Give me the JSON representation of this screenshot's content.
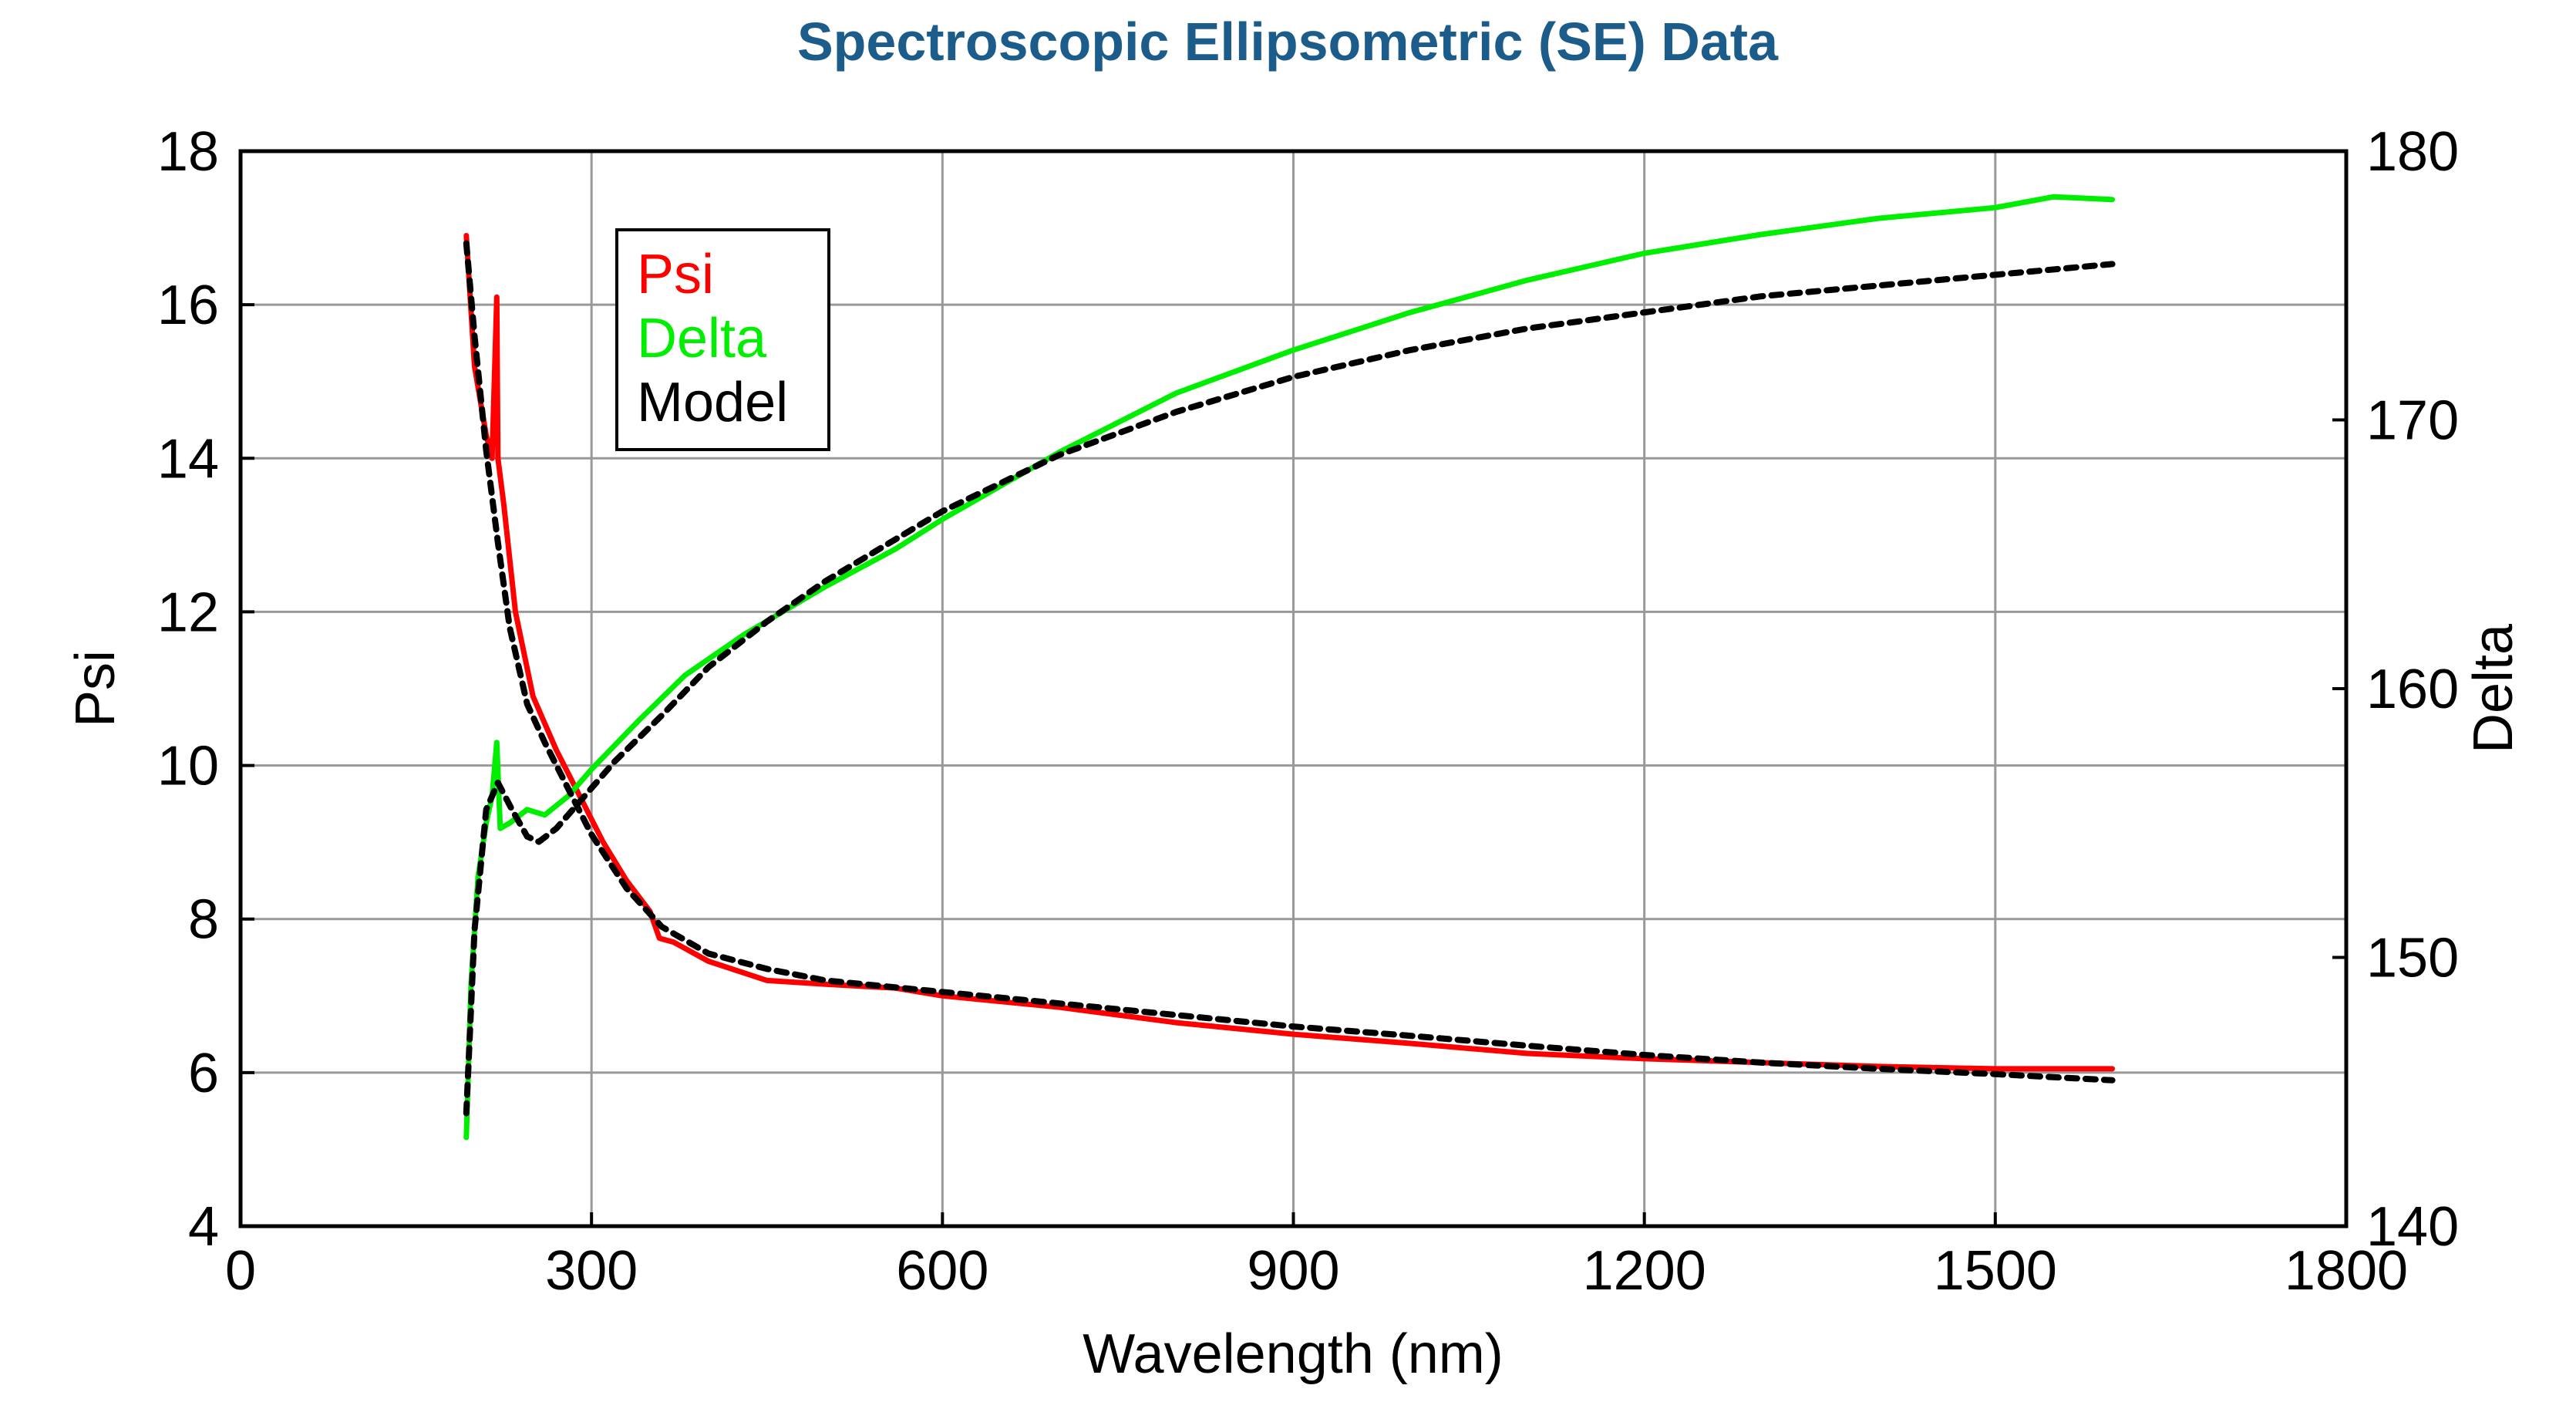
{
  "colors": {
    "title": "#1b5c8a",
    "psi": "#ff0000",
    "delta": "#00ee00",
    "model": "#000000",
    "grid": "#999999"
  },
  "chart_data": {
    "type": "line",
    "title": "Spectroscopic Ellipsometric (SE) Data",
    "xlabel": "Wavelength (nm)",
    "ylabel": "Psi",
    "y2label": "Delta",
    "xlim": [
      0,
      1800
    ],
    "ylim": [
      4,
      18
    ],
    "y2lim": [
      140,
      180
    ],
    "xticks": [
      0,
      300,
      600,
      900,
      1200,
      1500,
      1800
    ],
    "yticks": [
      4,
      6,
      8,
      10,
      12,
      14,
      16,
      18
    ],
    "y2ticks": [
      140,
      150,
      160,
      170,
      180
    ],
    "grid": true,
    "legend": {
      "position": "top-left",
      "entries": [
        {
          "label": "Psi",
          "series": "psi"
        },
        {
          "label": "Delta",
          "series": "delta"
        },
        {
          "label": "Model",
          "series": "model"
        }
      ]
    },
    "series": [
      {
        "name": "Psi",
        "key": "psi",
        "axis": "left",
        "style": "solid",
        "x": [
          193,
          200,
          210,
          215,
          219,
          220,
          225,
          235,
          250,
          270,
          290,
          310,
          330,
          350,
          358,
          370,
          400,
          450,
          500,
          560,
          600,
          700,
          800,
          900,
          1000,
          1100,
          1200,
          1300,
          1400,
          1500,
          1600
        ],
        "y": [
          16.9,
          15.2,
          14.3,
          14.0,
          16.1,
          14.0,
          13.4,
          12.0,
          10.9,
          10.2,
          9.6,
          9.0,
          8.5,
          8.1,
          7.75,
          7.7,
          7.45,
          7.2,
          7.15,
          7.1,
          7.0,
          6.85,
          6.65,
          6.5,
          6.38,
          6.25,
          6.18,
          6.13,
          6.08,
          6.05,
          6.05
        ]
      },
      {
        "name": "Delta",
        "key": "delta",
        "axis": "right",
        "style": "solid",
        "x": [
          193,
          197,
          203,
          210,
          215,
          219,
          222,
          230,
          245,
          260,
          280,
          300,
          340,
          380,
          430,
          500,
          560,
          600,
          700,
          800,
          900,
          1000,
          1100,
          1200,
          1300,
          1400,
          1500,
          1550,
          1600
        ],
        "y": [
          143.3,
          149.0,
          153.0,
          155.0,
          156.0,
          158.0,
          154.8,
          155.0,
          155.5,
          155.3,
          156.0,
          157.0,
          158.8,
          160.5,
          162.0,
          163.8,
          165.2,
          166.3,
          168.8,
          171.0,
          172.6,
          174.0,
          175.2,
          176.2,
          176.9,
          177.5,
          177.9,
          178.3,
          178.2
        ]
      },
      {
        "name": "Model Psi",
        "key": "model",
        "axis": "left",
        "style": "dashed",
        "x": [
          193,
          200,
          210,
          220,
          230,
          245,
          260,
          280,
          300,
          330,
          360,
          400,
          450,
          500,
          600,
          700,
          800,
          900,
          1000,
          1100,
          1200,
          1300,
          1400,
          1500,
          1600
        ],
        "y": [
          16.8,
          15.6,
          14.1,
          12.9,
          11.8,
          10.8,
          10.3,
          9.7,
          9.1,
          8.4,
          7.9,
          7.55,
          7.35,
          7.2,
          7.05,
          6.9,
          6.75,
          6.6,
          6.48,
          6.35,
          6.23,
          6.13,
          6.05,
          5.98,
          5.9
        ]
      },
      {
        "name": "Model Delta",
        "key": "model",
        "axis": "right",
        "style": "dashed",
        "x": [
          193,
          200,
          210,
          220,
          232,
          245,
          255,
          270,
          290,
          320,
          360,
          400,
          450,
          500,
          600,
          700,
          800,
          900,
          1000,
          1100,
          1200,
          1300,
          1400,
          1500,
          1600
        ],
        "y": [
          144.2,
          151.0,
          155.5,
          156.5,
          155.5,
          154.5,
          154.3,
          154.8,
          155.8,
          157.3,
          159.0,
          160.8,
          162.5,
          164.0,
          166.6,
          168.7,
          170.3,
          171.6,
          172.6,
          173.4,
          174.0,
          174.6,
          175.0,
          175.4,
          175.8
        ]
      }
    ]
  }
}
